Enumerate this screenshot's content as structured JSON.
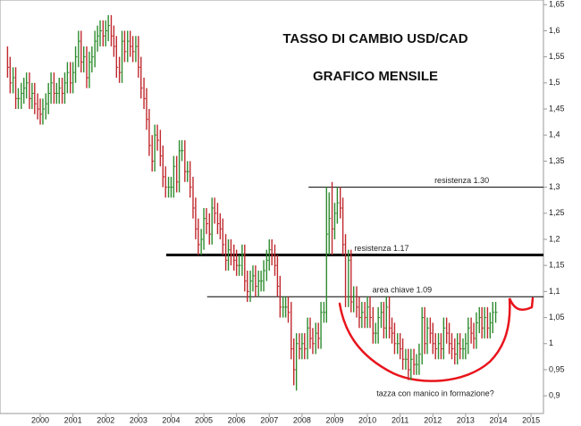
{
  "chart_data": {
    "type": "ohlc",
    "title": "TASSO DI CAMBIO USD/CAD",
    "subtitle": "GRAFICO MENSILE",
    "annotation": "tazza con manico in formazione?",
    "up_color": "#2e8b2e",
    "down_color": "#c0282d",
    "axis_color": "#999999",
    "xlim": [
      1998.77,
      2015.38
    ],
    "ylim": [
      0.866,
      1.659
    ],
    "xticks": [
      2000,
      2001,
      2002,
      2003,
      2004,
      2005,
      2006,
      2007,
      2008,
      2009,
      2010,
      2011,
      2012,
      2013,
      2014,
      2015
    ],
    "yticks": [
      {
        "value": 1.65,
        "label": "1,65"
      },
      {
        "value": 1.6,
        "label": "1,6"
      },
      {
        "value": 1.55,
        "label": "1,55"
      },
      {
        "value": 1.5,
        "label": "1,5"
      },
      {
        "value": 1.45,
        "label": "1,45"
      },
      {
        "value": 1.4,
        "label": "1,4"
      },
      {
        "value": 1.35,
        "label": "1,35"
      },
      {
        "value": 1.3,
        "label": "1,3"
      },
      {
        "value": 1.25,
        "label": "1,25"
      },
      {
        "value": 1.2,
        "label": "1,2"
      },
      {
        "value": 1.15,
        "label": "1,15"
      },
      {
        "value": 1.1,
        "label": "1,1"
      },
      {
        "value": 1.05,
        "label": "1,05"
      },
      1,
      {
        "value": 0.95,
        "label": "0,95"
      },
      {
        "value": 0.9,
        "label": "0,9"
      }
    ],
    "hlines": [
      {
        "label": "resistenza 1.30",
        "value": 1.3,
        "x_start": 2008.2,
        "width": 1
      },
      {
        "label": "resistenza 1.17",
        "value": 1.17,
        "x_start": 2003.85,
        "width": 3
      },
      {
        "label": "area chiave 1.09",
        "value": 1.09,
        "x_start": 2005.1,
        "width": 1
      }
    ],
    "x": [
      1999.0,
      1999.08,
      1999.17,
      1999.25,
      1999.33,
      1999.42,
      1999.5,
      1999.58,
      1999.67,
      1999.75,
      1999.83,
      1999.92,
      2000.0,
      2000.08,
      2000.17,
      2000.25,
      2000.33,
      2000.42,
      2000.5,
      2000.58,
      2000.67,
      2000.75,
      2000.83,
      2000.92,
      2001.0,
      2001.08,
      2001.17,
      2001.25,
      2001.33,
      2001.42,
      2001.5,
      2001.58,
      2001.67,
      2001.75,
      2001.83,
      2001.92,
      2002.0,
      2002.08,
      2002.17,
      2002.25,
      2002.33,
      2002.42,
      2002.5,
      2002.58,
      2002.67,
      2002.75,
      2002.83,
      2002.92,
      2003.0,
      2003.08,
      2003.17,
      2003.25,
      2003.33,
      2003.42,
      2003.5,
      2003.58,
      2003.67,
      2003.75,
      2003.83,
      2003.92,
      2004.0,
      2004.08,
      2004.17,
      2004.25,
      2004.33,
      2004.42,
      2004.5,
      2004.58,
      2004.67,
      2004.75,
      2004.83,
      2004.92,
      2005.0,
      2005.08,
      2005.17,
      2005.25,
      2005.33,
      2005.42,
      2005.5,
      2005.58,
      2005.67,
      2005.75,
      2005.83,
      2005.92,
      2006.0,
      2006.08,
      2006.17,
      2006.25,
      2006.33,
      2006.42,
      2006.5,
      2006.58,
      2006.67,
      2006.75,
      2006.83,
      2006.92,
      2007.0,
      2007.08,
      2007.17,
      2007.25,
      2007.33,
      2007.42,
      2007.5,
      2007.58,
      2007.67,
      2007.75,
      2007.83,
      2007.92,
      2008.0,
      2008.08,
      2008.17,
      2008.25,
      2008.33,
      2008.42,
      2008.5,
      2008.58,
      2008.67,
      2008.75,
      2008.83,
      2008.92,
      2009.0,
      2009.08,
      2009.17,
      2009.25,
      2009.33,
      2009.42,
      2009.5,
      2009.58,
      2009.67,
      2009.75,
      2009.83,
      2009.92,
      2010.0,
      2010.08,
      2010.17,
      2010.25,
      2010.33,
      2010.42,
      2010.5,
      2010.58,
      2010.67,
      2010.75,
      2010.83,
      2010.92,
      2011.0,
      2011.08,
      2011.17,
      2011.25,
      2011.33,
      2011.42,
      2011.5,
      2011.58,
      2011.67,
      2011.75,
      2011.83,
      2011.92,
      2012.0,
      2012.08,
      2012.17,
      2012.25,
      2012.33,
      2012.42,
      2012.5,
      2012.58,
      2012.67,
      2012.75,
      2012.83,
      2012.92,
      2013.0,
      2013.08,
      2013.17,
      2013.25,
      2013.33,
      2013.42,
      2013.5,
      2013.58,
      2013.67,
      2013.75,
      2013.83,
      2013.92
    ],
    "close": [
      1.53,
      1.5,
      1.51,
      1.47,
      1.47,
      1.48,
      1.49,
      1.5,
      1.47,
      1.48,
      1.46,
      1.45,
      1.44,
      1.45,
      1.46,
      1.48,
      1.5,
      1.48,
      1.48,
      1.49,
      1.48,
      1.5,
      1.52,
      1.5,
      1.52,
      1.55,
      1.58,
      1.54,
      1.55,
      1.51,
      1.54,
      1.55,
      1.58,
      1.59,
      1.6,
      1.59,
      1.6,
      1.61,
      1.59,
      1.57,
      1.53,
      1.52,
      1.58,
      1.56,
      1.58,
      1.57,
      1.56,
      1.57,
      1.53,
      1.49,
      1.47,
      1.43,
      1.38,
      1.35,
      1.4,
      1.39,
      1.36,
      1.32,
      1.3,
      1.3,
      1.3,
      1.34,
      1.31,
      1.37,
      1.37,
      1.33,
      1.33,
      1.3,
      1.26,
      1.22,
      1.19,
      1.2,
      1.24,
      1.23,
      1.21,
      1.26,
      1.25,
      1.23,
      1.22,
      1.19,
      1.16,
      1.18,
      1.17,
      1.16,
      1.15,
      1.15,
      1.17,
      1.12,
      1.1,
      1.12,
      1.13,
      1.11,
      1.12,
      1.12,
      1.14,
      1.16,
      1.18,
      1.17,
      1.15,
      1.11,
      1.07,
      1.07,
      1.07,
      1.06,
      0.99,
      0.95,
      1.0,
      0.99,
      1.0,
      0.99,
      1.03,
      1.01,
      1.0,
      1.02,
      1.01,
      1.06,
      1.06,
      1.21,
      1.24,
      1.22,
      1.25,
      1.27,
      1.26,
      1.19,
      1.09,
      1.16,
      1.08,
      1.09,
      1.07,
      1.05,
      1.06,
      1.05,
      1.07,
      1.05,
      1.02,
      1.02,
      1.05,
      1.06,
      1.03,
      1.07,
      1.03,
      1.02,
      1.0,
      1.0,
      0.99,
      0.97,
      0.97,
      0.95,
      0.97,
      0.96,
      0.96,
      0.98,
      1.05,
      1.0,
      1.03,
      1.02,
      1.0,
      0.99,
      1.0,
      0.99,
      1.03,
      1.02,
      1.0,
      0.99,
      0.98,
      1.0,
      0.99,
      0.99,
      1.0,
      1.03,
      1.02,
      1.01,
      1.04,
      1.05,
      1.03,
      1.05,
      1.03,
      1.04,
      1.06,
      1.06
    ],
    "high": [
      1.57,
      1.55,
      1.53,
      1.53,
      1.49,
      1.5,
      1.51,
      1.52,
      1.52,
      1.5,
      1.5,
      1.48,
      1.47,
      1.47,
      1.48,
      1.5,
      1.52,
      1.52,
      1.5,
      1.51,
      1.51,
      1.52,
      1.54,
      1.54,
      1.54,
      1.57,
      1.6,
      1.6,
      1.57,
      1.57,
      1.56,
      1.57,
      1.6,
      1.61,
      1.62,
      1.62,
      1.62,
      1.63,
      1.63,
      1.61,
      1.59,
      1.55,
      1.6,
      1.6,
      1.6,
      1.6,
      1.59,
      1.59,
      1.59,
      1.55,
      1.51,
      1.49,
      1.45,
      1.4,
      1.42,
      1.42,
      1.41,
      1.38,
      1.34,
      1.32,
      1.32,
      1.36,
      1.36,
      1.39,
      1.39,
      1.39,
      1.35,
      1.35,
      1.32,
      1.28,
      1.24,
      1.22,
      1.26,
      1.26,
      1.25,
      1.28,
      1.28,
      1.27,
      1.25,
      1.24,
      1.21,
      1.2,
      1.2,
      1.19,
      1.18,
      1.17,
      1.19,
      1.19,
      1.14,
      1.14,
      1.15,
      1.15,
      1.14,
      1.14,
      1.16,
      1.18,
      1.2,
      1.2,
      1.19,
      1.17,
      1.13,
      1.09,
      1.09,
      1.09,
      1.08,
      1.01,
      1.02,
      1.02,
      1.02,
      1.02,
      1.05,
      1.05,
      1.03,
      1.04,
      1.04,
      1.08,
      1.08,
      1.3,
      1.29,
      1.31,
      1.27,
      1.3,
      1.3,
      1.28,
      1.21,
      1.18,
      1.18,
      1.11,
      1.11,
      1.09,
      1.08,
      1.08,
      1.09,
      1.09,
      1.07,
      1.04,
      1.07,
      1.08,
      1.08,
      1.09,
      1.09,
      1.05,
      1.04,
      1.02,
      1.02,
      1.01,
      0.99,
      0.99,
      0.99,
      0.99,
      0.98,
      1.0,
      1.07,
      1.07,
      1.05,
      1.05,
      1.04,
      1.02,
      1.02,
      1.02,
      1.05,
      1.05,
      1.04,
      1.02,
      1.01,
      1.02,
      1.02,
      1.01,
      1.02,
      1.05,
      1.05,
      1.04,
      1.06,
      1.07,
      1.07,
      1.07,
      1.07,
      1.06,
      1.08,
      1.08
    ],
    "low": [
      1.51,
      1.48,
      1.48,
      1.45,
      1.45,
      1.45,
      1.46,
      1.47,
      1.45,
      1.45,
      1.44,
      1.43,
      1.42,
      1.42,
      1.43,
      1.44,
      1.46,
      1.46,
      1.46,
      1.46,
      1.46,
      1.46,
      1.48,
      1.48,
      1.48,
      1.5,
      1.53,
      1.52,
      1.52,
      1.49,
      1.49,
      1.52,
      1.53,
      1.56,
      1.57,
      1.57,
      1.57,
      1.58,
      1.57,
      1.55,
      1.51,
      1.5,
      1.5,
      1.54,
      1.54,
      1.55,
      1.54,
      1.54,
      1.51,
      1.47,
      1.45,
      1.41,
      1.36,
      1.33,
      1.33,
      1.37,
      1.34,
      1.3,
      1.28,
      1.28,
      1.28,
      1.28,
      1.29,
      1.29,
      1.35,
      1.31,
      1.31,
      1.28,
      1.24,
      1.2,
      1.17,
      1.17,
      1.18,
      1.21,
      1.19,
      1.19,
      1.23,
      1.21,
      1.2,
      1.17,
      1.14,
      1.14,
      1.15,
      1.14,
      1.13,
      1.13,
      1.13,
      1.1,
      1.08,
      1.08,
      1.1,
      1.09,
      1.09,
      1.1,
      1.1,
      1.12,
      1.14,
      1.15,
      1.13,
      1.09,
      1.05,
      1.05,
      1.05,
      1.04,
      0.97,
      0.92,
      0.91,
      0.97,
      0.97,
      0.97,
      0.97,
      0.99,
      0.98,
      0.98,
      0.99,
      0.99,
      1.04,
      1.04,
      1.17,
      1.17,
      1.2,
      1.23,
      1.24,
      1.17,
      1.07,
      1.07,
      1.06,
      1.06,
      1.05,
      1.03,
      1.03,
      1.03,
      1.03,
      1.03,
      1.0,
      1.0,
      1.0,
      1.03,
      1.01,
      1.01,
      1.01,
      1.0,
      0.98,
      0.98,
      0.97,
      0.95,
      0.95,
      0.93,
      0.93,
      0.94,
      0.94,
      0.94,
      0.96,
      0.98,
      0.98,
      1.0,
      0.98,
      0.97,
      0.97,
      0.97,
      0.97,
      1.0,
      0.98,
      0.97,
      0.96,
      0.96,
      0.97,
      0.97,
      0.97,
      0.98,
      1.0,
      0.99,
      0.99,
      1.02,
      1.01,
      1.01,
      1.01,
      1.01,
      1.02,
      1.04
    ]
  }
}
